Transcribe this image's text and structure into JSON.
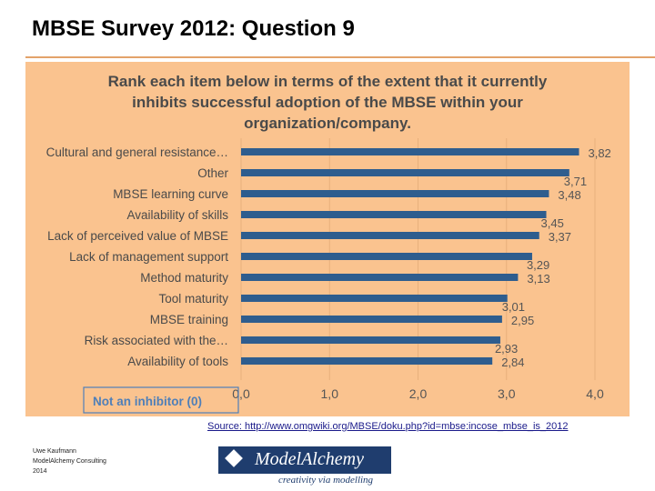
{
  "slide": {
    "title": "MBSE Survey 2012: Question 9",
    "source": "Source: http://www.omgwiki.org/MBSE/doku.php?id=mbse:incose_mbse_is_2012",
    "footer": {
      "line1": "Uwe Kaufmann",
      "line2": "ModelAlchemy Consulting",
      "line3": "2014"
    },
    "logo": {
      "name": "ModelAlchemy",
      "tagline": "creativity via modelling"
    }
  },
  "colors": {
    "panel": "#fac38f",
    "bar": "#2e5d8e",
    "title_text": "#4a4a4a",
    "legend_text": "#4f7fb8",
    "rule": "#e3a36a"
  },
  "chart_data": {
    "type": "bar",
    "orientation": "horizontal",
    "title_lines": [
      "Rank each item below in terms of the extent that it currently",
      "inhibits successful adoption of the MBSE within your",
      "organization/company."
    ],
    "categories": [
      "Cultural and general resistance…",
      "Other",
      "MBSE learning curve",
      "Availability of skills",
      "Lack of perceived value of MBSE",
      "Lack of management support",
      "Method maturity",
      "Tool maturity",
      "MBSE training",
      "Risk associated with the…",
      "Availability of tools"
    ],
    "values": [
      3.82,
      3.71,
      3.48,
      3.45,
      3.37,
      3.29,
      3.13,
      3.01,
      2.95,
      2.93,
      2.84
    ],
    "value_labels": [
      "3,82",
      "3,71",
      "3,48",
      "3,45",
      "3,37",
      "3,29",
      "3,13",
      "3,01",
      "2,95",
      "2,93",
      "2,84"
    ],
    "xlim": [
      0,
      4
    ],
    "x_ticks": [
      0,
      1,
      2,
      3,
      4
    ],
    "x_tick_labels": [
      "0,0",
      "1,0",
      "2,0",
      "3,0",
      "4,0"
    ],
    "legend_note": "Not an inhibitor (0)",
    "grid": true
  }
}
